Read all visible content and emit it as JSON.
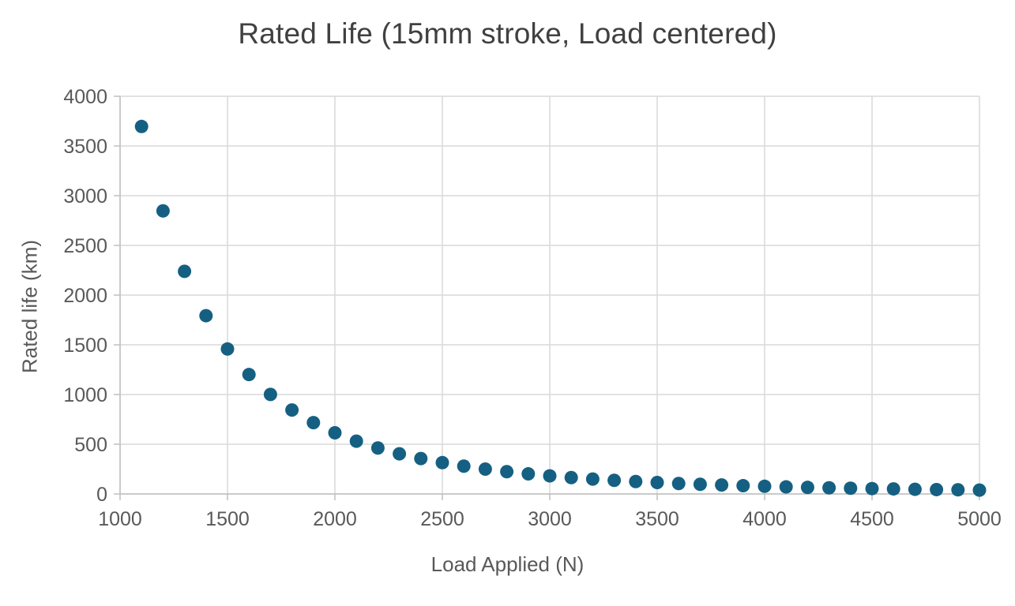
{
  "chart_data": {
    "type": "scatter",
    "title": "Rated Life (15mm stroke, Load centered)",
    "xlabel": "Load Applied (N)",
    "ylabel": "Rated life (km)",
    "xlim": [
      1000,
      5000
    ],
    "ylim": [
      0,
      4000
    ],
    "x_ticks": [
      1000,
      1500,
      2000,
      2500,
      3000,
      3500,
      4000,
      4500,
      5000
    ],
    "y_ticks": [
      0,
      500,
      1000,
      1500,
      2000,
      2500,
      3000,
      3500,
      4000
    ],
    "grid": true,
    "legend": "none",
    "marker_color": "#156082",
    "grid_color": "#D9D9D9",
    "tick_color": "#BFBFBF",
    "points": [
      [
        1100,
        3696
      ],
      [
        1200,
        2847
      ],
      [
        1300,
        2239
      ],
      [
        1400,
        1793
      ],
      [
        1500,
        1458
      ],
      [
        1600,
        1201
      ],
      [
        1700,
        1001
      ],
      [
        1800,
        844
      ],
      [
        1900,
        717
      ],
      [
        2000,
        615
      ],
      [
        2100,
        531
      ],
      [
        2200,
        462
      ],
      [
        2300,
        404
      ],
      [
        2400,
        356
      ],
      [
        2500,
        315
      ],
      [
        2600,
        280
      ],
      [
        2700,
        250
      ],
      [
        2800,
        224
      ],
      [
        2900,
        202
      ],
      [
        3000,
        182
      ],
      [
        3100,
        165
      ],
      [
        3200,
        150
      ],
      [
        3300,
        137
      ],
      [
        3400,
        125
      ],
      [
        3500,
        115
      ],
      [
        3600,
        105
      ],
      [
        3700,
        97
      ],
      [
        3800,
        90
      ],
      [
        3900,
        83
      ],
      [
        4000,
        77
      ],
      [
        4100,
        71
      ],
      [
        4200,
        66
      ],
      [
        4300,
        62
      ],
      [
        4400,
        58
      ],
      [
        4500,
        54
      ],
      [
        4600,
        51
      ],
      [
        4700,
        47
      ],
      [
        4800,
        44
      ],
      [
        4900,
        42
      ],
      [
        5000,
        39
      ]
    ]
  }
}
